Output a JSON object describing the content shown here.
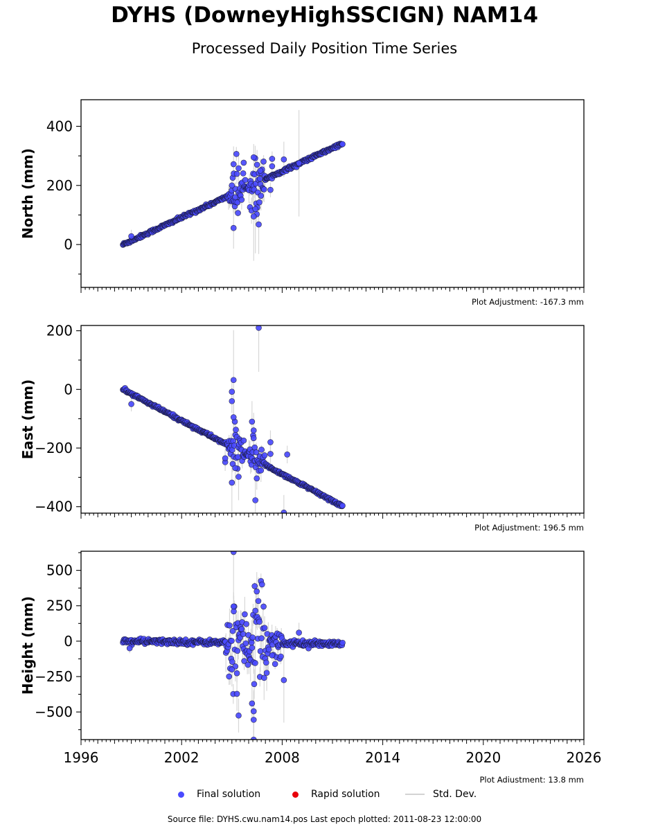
{
  "title": "DYHS (DowneyHighSSCIGN) NAM14",
  "subtitle": "Processed Daily Position Time Series",
  "legend": {
    "final": "Final solution",
    "rapid": "Rapid solution",
    "stddev": "Std. Dev."
  },
  "colors": {
    "final": "#4a4aff",
    "final_edge": "#1a1a3a",
    "rapid": "#e8000b",
    "stddev": "#d3d3d3"
  },
  "footer": "Source file: DYHS.cwu.nam14.pos  Last epoch plotted: 2011-08-23 12:00:00",
  "chart_data": [
    {
      "type": "scatter",
      "panel": "north",
      "ylabel": "North (mm)",
      "xlim": [
        1996,
        2026
      ],
      "ylim": [
        -145,
        490
      ],
      "yticks": [
        0,
        200,
        400
      ],
      "adjustment": "Plot Adjustment: -167.3 mm",
      "trend": {
        "x": [
          1998.5,
          2011.6
        ],
        "y": [
          0,
          342
        ]
      },
      "noise": 2.5,
      "outliers": [
        {
          "x": 1999.0,
          "y": 28,
          "err": 22
        },
        {
          "x": 2005.1,
          "y": 56,
          "err": 70
        },
        {
          "x": 2005.1,
          "y": 272,
          "err": 60
        },
        {
          "x": 2005.0,
          "y": 200,
          "err": 40
        },
        {
          "x": 2005.2,
          "y": 160,
          "err": 50
        },
        {
          "x": 2005.4,
          "y": 258,
          "err": 45
        },
        {
          "x": 2006.3,
          "y": 295,
          "err": 45
        },
        {
          "x": 2006.4,
          "y": 120,
          "err": 150
        },
        {
          "x": 2006.3,
          "y": 95,
          "err": 150
        },
        {
          "x": 2006.6,
          "y": 68,
          "err": 100
        },
        {
          "x": 2006.5,
          "y": 270,
          "err": 50
        },
        {
          "x": 2006.7,
          "y": 250,
          "err": 40
        },
        {
          "x": 2007.4,
          "y": 290,
          "err": 25
        },
        {
          "x": 2007.4,
          "y": 265,
          "err": 30
        },
        {
          "x": 2007.3,
          "y": 185,
          "err": 25
        },
        {
          "x": 2008.1,
          "y": 288,
          "err": 60
        },
        {
          "x": 2009.0,
          "y": 275,
          "err": 180
        }
      ],
      "scatter": [
        {
          "x0": 2004.8,
          "x1": 2005.8,
          "amp": 45
        },
        {
          "x0": 2006.0,
          "x1": 2007.0,
          "amp": 60
        }
      ]
    },
    {
      "type": "scatter",
      "panel": "east",
      "ylabel": "East (mm)",
      "xlim": [
        1996,
        2026
      ],
      "ylim": [
        -422,
        218
      ],
      "yticks": [
        -400,
        -200,
        0,
        200
      ],
      "adjustment": "Plot Adjustment: 196.5 mm",
      "trend": {
        "x": [
          1998.5,
          2011.6
        ],
        "y": [
          0,
          -398
        ]
      },
      "noise": 2.5,
      "outliers": [
        {
          "x": 1999.0,
          "y": -50,
          "err": 25
        },
        {
          "x": 2005.0,
          "y": -8,
          "err": 40
        },
        {
          "x": 2005.0,
          "y": -40,
          "err": 40
        },
        {
          "x": 2005.1,
          "y": 32,
          "err": 170
        },
        {
          "x": 2005.1,
          "y": -95,
          "err": 60
        },
        {
          "x": 2005.0,
          "y": -318,
          "err": 100
        },
        {
          "x": 2005.2,
          "y": -268,
          "err": 60
        },
        {
          "x": 2005.4,
          "y": -298,
          "err": 80
        },
        {
          "x": 2004.6,
          "y": -248,
          "err": 30
        },
        {
          "x": 2004.6,
          "y": -235,
          "err": 30
        },
        {
          "x": 2006.2,
          "y": -110,
          "err": 70
        },
        {
          "x": 2006.4,
          "y": -378,
          "err": 100
        },
        {
          "x": 2006.3,
          "y": -140,
          "err": 60
        },
        {
          "x": 2006.6,
          "y": 210,
          "err": 150
        },
        {
          "x": 2007.3,
          "y": -180,
          "err": 40
        },
        {
          "x": 2007.3,
          "y": -220,
          "err": 40
        },
        {
          "x": 2008.1,
          "y": -420,
          "err": 60
        },
        {
          "x": 2008.3,
          "y": -222,
          "err": 30
        }
      ],
      "scatter": [
        {
          "x0": 2004.8,
          "x1": 2005.8,
          "amp": 40
        },
        {
          "x0": 2006.0,
          "x1": 2007.0,
          "amp": 45
        }
      ]
    },
    {
      "type": "scatter",
      "panel": "height",
      "ylabel": "Height (mm)",
      "xlim": [
        1996,
        2026
      ],
      "ylim": [
        -695,
        635
      ],
      "yticks": [
        -500,
        -250,
        0,
        250,
        500
      ],
      "xticks": [
        1996,
        2002,
        2008,
        2014,
        2020,
        2026
      ],
      "adjustment": "Plot Adjustment: 13.8 mm",
      "trend": {
        "x": [
          1998.5,
          2011.6
        ],
        "y": [
          0,
          -20
        ]
      },
      "noise": 9,
      "outliers": [
        {
          "x": 1998.9,
          "y": -50,
          "err": 35
        },
        {
          "x": 2005.1,
          "y": 630,
          "err": 330
        },
        {
          "x": 2005.1,
          "y": 245,
          "err": 100
        },
        {
          "x": 2005.3,
          "y": -372,
          "err": 120
        },
        {
          "x": 2005.4,
          "y": -525,
          "err": 120
        },
        {
          "x": 2005.0,
          "y": -200,
          "err": 120
        },
        {
          "x": 2006.3,
          "y": -695,
          "err": 200
        },
        {
          "x": 2006.3,
          "y": -555,
          "err": 200
        },
        {
          "x": 2006.3,
          "y": -495,
          "err": 150
        },
        {
          "x": 2006.2,
          "y": -440,
          "err": 120
        },
        {
          "x": 2006.4,
          "y": 215,
          "err": 80
        },
        {
          "x": 2008.1,
          "y": -275,
          "err": 300
        },
        {
          "x": 2009.0,
          "y": 60,
          "err": 70
        },
        {
          "x": 2007.4,
          "y": -100,
          "err": 40
        }
      ],
      "scatter": [
        {
          "x0": 2004.6,
          "x1": 2005.9,
          "amp": 170
        },
        {
          "x0": 2005.9,
          "x1": 2007.2,
          "amp": 230
        },
        {
          "x0": 2007.2,
          "x1": 2008.0,
          "amp": 90
        }
      ]
    }
  ]
}
